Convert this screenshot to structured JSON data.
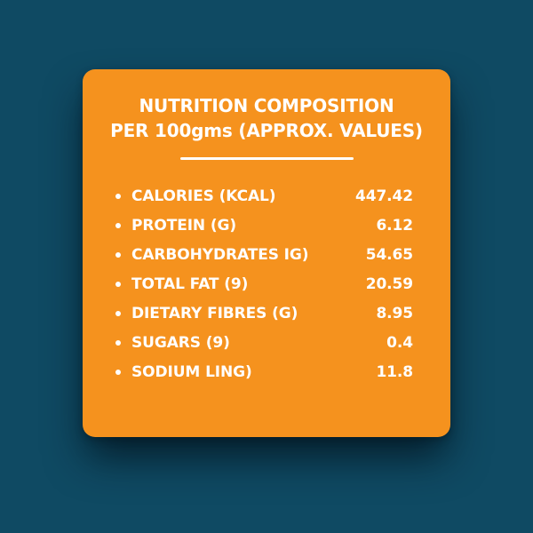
{
  "colors": {
    "background": "#0F4A63",
    "card": "#F5921E",
    "text": "#FFFFFF"
  },
  "card": {
    "title_line1": "NUTRITION COMPOSITION",
    "title_line2": "PER 100gms (APPROX. VALUES)",
    "bullet_icon": "•",
    "rows": [
      {
        "label": "CALORIES (KCAL)",
        "value": "447.42"
      },
      {
        "label": "PROTEIN (G)",
        "value": "6.12"
      },
      {
        "label": "CARBOHYDRATES IG)",
        "value": "54.65"
      },
      {
        "label": "TOTAL FAT (9)",
        "value": "20.59"
      },
      {
        "label": "DIETARY FIBRES (G)",
        "value": "8.95"
      },
      {
        "label": "SUGARS (9)",
        "value": "0.4"
      },
      {
        "label": "SODIUM LING)",
        "value": "11.8"
      }
    ]
  },
  "chart_data": {
    "type": "table",
    "title": "NUTRITION COMPOSITION PER 100gms (APPROX. VALUES)",
    "categories": [
      "CALORIES (KCAL)",
      "PROTEIN (G)",
      "CARBOHYDRATES IG)",
      "TOTAL FAT (9)",
      "DIETARY FIBRES (G)",
      "SUGARS (9)",
      "SODIUM LING)"
    ],
    "values": [
      447.42,
      6.12,
      54.65,
      20.59,
      8.95,
      0.4,
      11.8
    ]
  }
}
